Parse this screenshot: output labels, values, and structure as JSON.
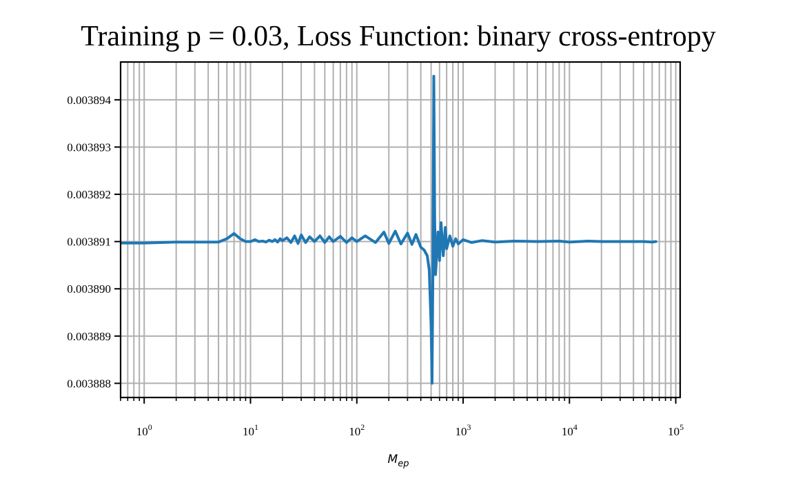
{
  "chart_data": {
    "type": "line",
    "title": "Training p = 0.03, Loss Function: binary cross-entropy",
    "xlabel": "M",
    "xlabel_subscript": "ep",
    "ylabel": "",
    "xscale": "log",
    "xlim": [
      0.6,
      110000
    ],
    "ylim": [
      0.0038877,
      0.0038948
    ],
    "grid": true,
    "legend": "none",
    "line_color": "#1f77b4",
    "x_ticks": [
      {
        "base": "10",
        "exp": "0",
        "value": 1
      },
      {
        "base": "10",
        "exp": "1",
        "value": 10
      },
      {
        "base": "10",
        "exp": "2",
        "value": 100
      },
      {
        "base": "10",
        "exp": "3",
        "value": 1000
      },
      {
        "base": "10",
        "exp": "4",
        "value": 10000
      },
      {
        "base": "10",
        "exp": "5",
        "value": 100000
      }
    ],
    "y_ticks": [
      {
        "label": "0.003888",
        "value": 0.003888
      },
      {
        "label": "0.003889",
        "value": 0.003889
      },
      {
        "label": "0.003890",
        "value": 0.00389
      },
      {
        "label": "0.003891",
        "value": 0.003891
      },
      {
        "label": "0.003892",
        "value": 0.003892
      },
      {
        "label": "0.003893",
        "value": 0.003893
      },
      {
        "label": "0.003894",
        "value": 0.003894
      }
    ],
    "series": [
      {
        "x": [
          0.6,
          1,
          2,
          3,
          4,
          5,
          6,
          7,
          8,
          9,
          10,
          11,
          12,
          13,
          14,
          15,
          16,
          17,
          18,
          19,
          20,
          22,
          24,
          26,
          28,
          30,
          33,
          36,
          40,
          45,
          50,
          55,
          60,
          70,
          80,
          90,
          100,
          120,
          150,
          180,
          200,
          230,
          260,
          300,
          330,
          360,
          400,
          430,
          460,
          480,
          500,
          510,
          520,
          530,
          540,
          550,
          560,
          580,
          600,
          620,
          650,
          680,
          700,
          750,
          800,
          850,
          900,
          1000,
          1200,
          1500,
          2000,
          3000,
          5000,
          8000,
          10000,
          15000,
          20000,
          30000,
          40000,
          50000,
          60000,
          65000
        ],
        "y": [
          0.00389097,
          0.00389097,
          0.00389099,
          0.00389099,
          0.00389099,
          0.00389099,
          0.00389106,
          0.00389117,
          0.00389106,
          0.003891,
          0.003891,
          0.00389104,
          0.003891,
          0.00389101,
          0.00389099,
          0.00389103,
          0.003891,
          0.00389104,
          0.00389099,
          0.00389106,
          0.00389102,
          0.00389108,
          0.00389098,
          0.00389112,
          0.00389096,
          0.00389114,
          0.00389098,
          0.0038911,
          0.003891,
          0.00389112,
          0.00389098,
          0.0038911,
          0.003891,
          0.00389111,
          0.00389098,
          0.00389108,
          0.003891,
          0.00389112,
          0.00389098,
          0.0038912,
          0.00389096,
          0.00389122,
          0.00389095,
          0.00389118,
          0.00389094,
          0.00389115,
          0.00389088,
          0.00389082,
          0.0038907,
          0.0038904,
          0.0038892,
          0.003888,
          0.0038905,
          0.0038945,
          0.0038915,
          0.0038903,
          0.0038906,
          0.0038912,
          0.0038906,
          0.0038914,
          0.0038907,
          0.0038913,
          0.00389085,
          0.00389112,
          0.0038909,
          0.00389106,
          0.00389095,
          0.00389104,
          0.00389098,
          0.00389102,
          0.00389099,
          0.00389101,
          0.003891,
          0.00389101,
          0.00389099,
          0.00389101,
          0.003891,
          0.003891,
          0.003891,
          0.003891,
          0.00389099,
          0.003891
        ]
      }
    ]
  }
}
